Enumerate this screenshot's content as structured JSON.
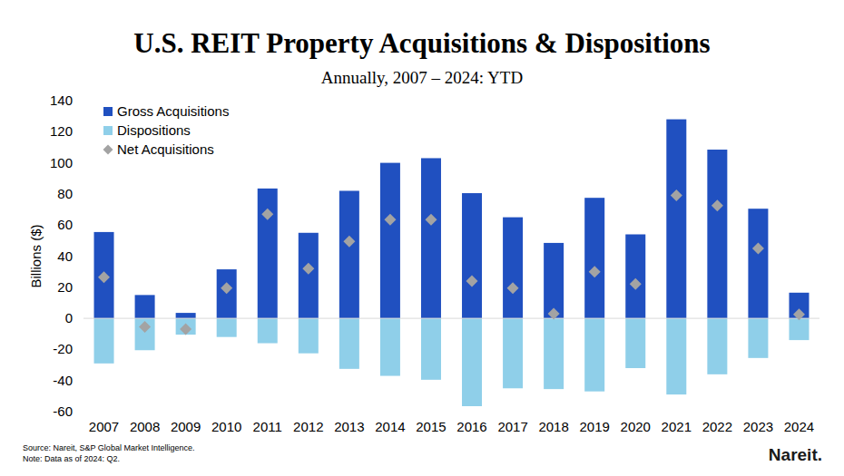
{
  "chart_data": {
    "type": "bar",
    "title": "U.S. REIT Property Acquisitions & Dispositions",
    "subtitle": "Annually, 2007 – 2024: YTD",
    "y_label": "Billions ($)",
    "source": "Source: Nareit, S&P Global Market Intelligence.",
    "note": "Note: Data as of 2024: Q2.",
    "logo": "Nareit.",
    "categories": [
      "2007",
      "2008",
      "2009",
      "2010",
      "2011",
      "2012",
      "2013",
      "2014",
      "2015",
      "2016",
      "2017",
      "2018",
      "2019",
      "2020",
      "2021",
      "2022",
      "2023",
      "2024"
    ],
    "series": [
      {
        "name": "Gross Acquisitions",
        "type": "bar",
        "color": "#2050c0",
        "values": [
          55.5,
          15,
          3.5,
          31.5,
          83.5,
          55,
          82,
          100,
          103,
          80.5,
          65,
          48.5,
          77.5,
          54,
          128,
          108.5,
          70.5,
          16.5
        ]
      },
      {
        "name": "Dispositions",
        "type": "bar",
        "color": "#8fcfe9",
        "values": [
          -29,
          -20.5,
          -10.5,
          -12,
          -16,
          -22.5,
          -32.5,
          -37,
          -39.5,
          -56.5,
          -45,
          -45.5,
          -47,
          -32,
          -49,
          -36,
          -25.5,
          -14
        ]
      },
      {
        "name": "Net Acquisitions",
        "type": "scatter",
        "marker": "diamond",
        "color": "#a3a3a3",
        "values": [
          26.5,
          -5.5,
          -7,
          19.5,
          67,
          32,
          49.5,
          63.5,
          63.5,
          24,
          19.5,
          3,
          30,
          22,
          79,
          72.5,
          45,
          2.5
        ]
      }
    ],
    "stacked": true,
    "ylim": [
      -60,
      140
    ],
    "yticks": [
      -60,
      -40,
      -20,
      0,
      20,
      40,
      60,
      80,
      100,
      120,
      140
    ],
    "grid": false,
    "legend": "top-left"
  }
}
